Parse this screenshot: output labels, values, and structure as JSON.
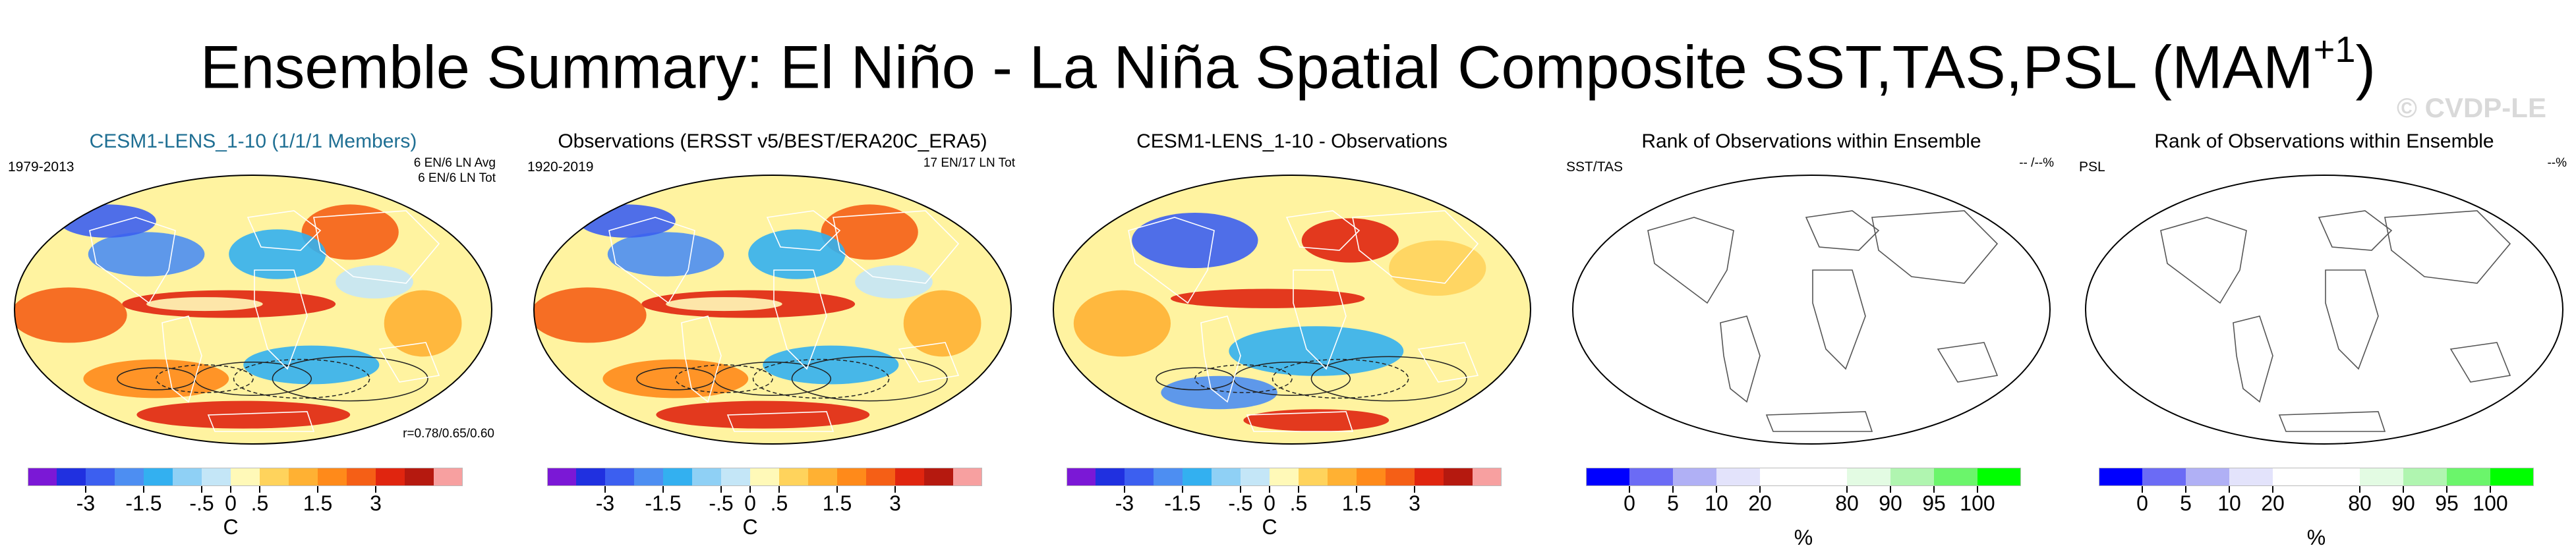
{
  "figure": {
    "title": "Ensemble Summary: El Niño - La Niña Spatial Composite SST,TAS,PSL (MAM",
    "title_sup": "+1",
    "title_close": ")",
    "watermark": "© CVDP-LE"
  },
  "panels": [
    {
      "title": "CESM1-LENS_1-10 (1/1/1 Members)",
      "title_color": "#1f6f93",
      "left_label": "1979-2013",
      "right_label_1": "6 EN/6 LN Avg",
      "right_label_2": "6 EN/6 LN Tot",
      "bottom_right_label": "r=0.78/0.65/0.60",
      "map_style": "anomaly",
      "legend": "temperature"
    },
    {
      "title": "Observations (ERSST v5/BEST/ERA20C_ERA5)",
      "title_color": "#000000",
      "left_label": "1920-2019",
      "right_label_1": "17 EN/17 LN Tot",
      "right_label_2": "",
      "bottom_right_label": "",
      "map_style": "anomaly",
      "legend": "temperature"
    },
    {
      "title": "CESM1-LENS_1-10 - Observations",
      "title_color": "#000000",
      "left_label": "",
      "right_label_1": "",
      "right_label_2": "",
      "bottom_right_label": "",
      "map_style": "difference",
      "legend": "temperature"
    },
    {
      "title": "Rank of Observations within Ensemble",
      "title_color": "#000000",
      "left_label": "SST/TAS",
      "right_label_1": "-- /--%",
      "right_label_2": "",
      "bottom_right_label": "",
      "map_style": "blank",
      "legend": "rank"
    },
    {
      "title": "Rank of Observations within Ensemble",
      "title_color": "#000000",
      "left_label": "PSL",
      "right_label_1": "--%",
      "right_label_2": "",
      "bottom_right_label": "",
      "map_style": "blank",
      "legend": "rank"
    }
  ],
  "legends": {
    "temperature": {
      "unit": "C",
      "colors": [
        "#7b18d6",
        "#2030e0",
        "#3c5ff0",
        "#4d8ef2",
        "#33b0f0",
        "#8fd0f5",
        "#c4e6f7",
        "#fff9b8",
        "#ffd35c",
        "#ffb133",
        "#ff8a1a",
        "#f55f16",
        "#e0250f",
        "#b5190f",
        "#f7a0a0"
      ],
      "tick_labels": [
        "-3",
        "-1.5",
        "-.5",
        "0",
        ".5",
        "1.5",
        "3"
      ],
      "tick_boundaries": [
        2,
        4,
        6,
        7,
        8,
        10,
        12
      ]
    },
    "rank": {
      "unit": "%",
      "colors": [
        "#0000ff",
        "#6b6bf5",
        "#b0b0f5",
        "#e3e3fb",
        "#ffffff",
        "#ffffff",
        "#e3fbe3",
        "#b0f5b0",
        "#6bf56b",
        "#00ff00"
      ],
      "tick_labels": [
        "0",
        "5",
        "10",
        "20",
        "80",
        "90",
        "95",
        "100"
      ],
      "tick_boundaries": [
        1,
        2,
        3,
        4,
        6,
        7,
        8,
        9
      ]
    }
  },
  "chart_data": [
    {
      "type": "heatmap",
      "title": "CESM1-LENS_1-10 (1/1/1 Members)",
      "description": "SST/TAS composite anomaly (shading) with PSL contours; strong warm tongue in equatorial eastern Pacific",
      "colorbar_ticks": [
        -3,
        -1.5,
        -0.5,
        0,
        0.5,
        1.5,
        3
      ],
      "colorbar_unit": "C",
      "period": "1979-2013",
      "pattern_correlation": "r=0.78/0.65/0.60"
    },
    {
      "type": "heatmap",
      "title": "Observations (ERSST v5/BEST/ERA20C_ERA5)",
      "colorbar_ticks": [
        -3,
        -1.5,
        -0.5,
        0,
        0.5,
        1.5,
        3
      ],
      "colorbar_unit": "C",
      "period": "1920-2019"
    },
    {
      "type": "heatmap",
      "title": "CESM1-LENS_1-10 - Observations",
      "colorbar_ticks": [
        -3,
        -1.5,
        -0.5,
        0,
        0.5,
        1.5,
        3
      ],
      "colorbar_unit": "C"
    },
    {
      "type": "heatmap",
      "title": "Rank of Observations within Ensemble",
      "variable": "SST/TAS",
      "colorbar_ticks": [
        0,
        5,
        10,
        20,
        80,
        90,
        95,
        100
      ],
      "colorbar_unit": "%"
    },
    {
      "type": "heatmap",
      "title": "Rank of Observations within Ensemble",
      "variable": "PSL",
      "colorbar_ticks": [
        0,
        5,
        10,
        20,
        80,
        90,
        95,
        100
      ],
      "colorbar_unit": "%"
    }
  ]
}
